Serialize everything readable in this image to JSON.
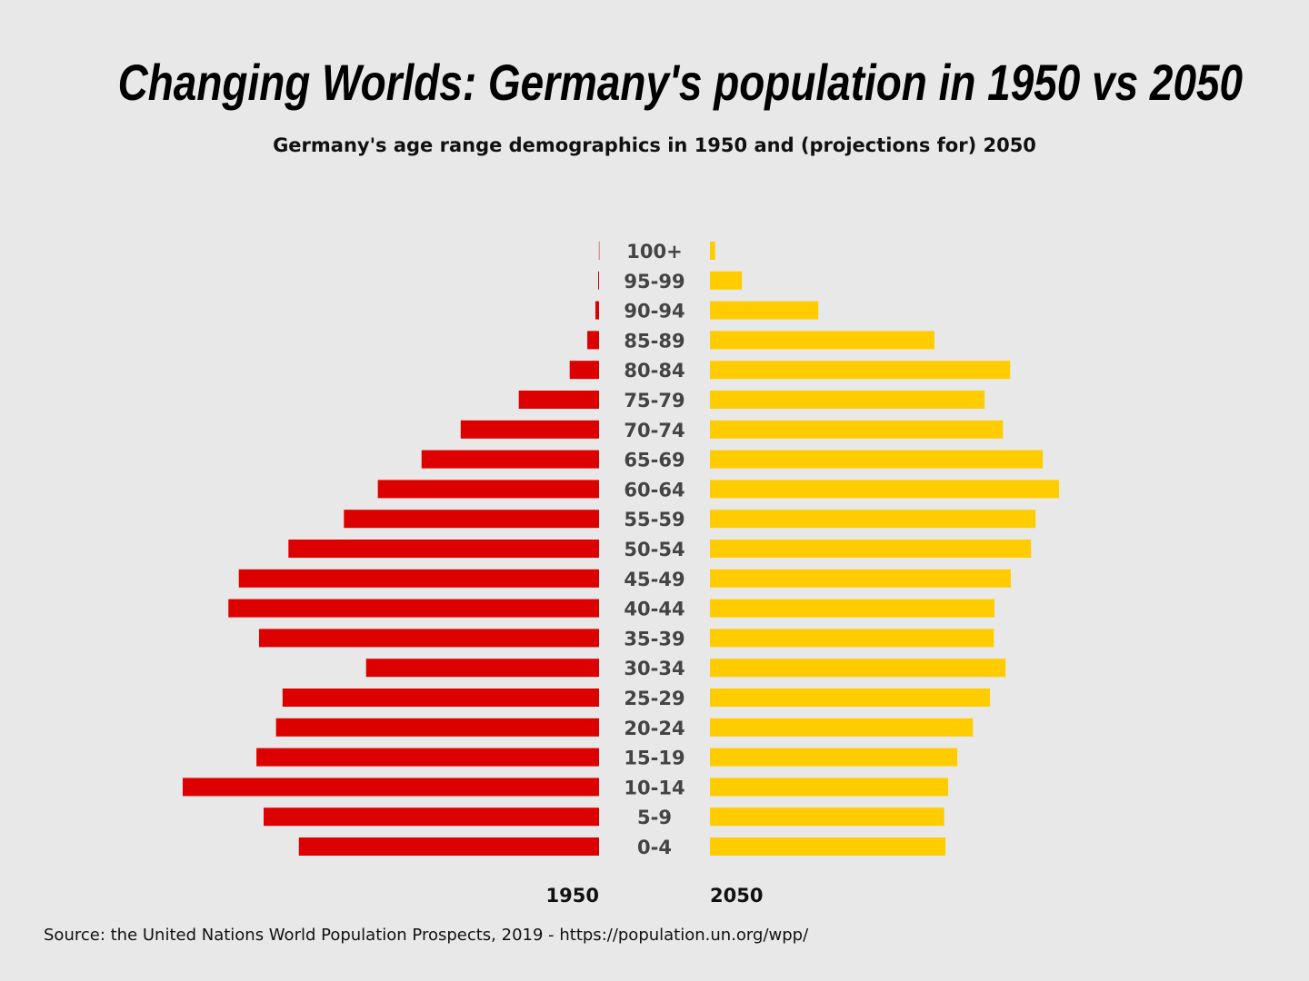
{
  "title": "Changing Worlds: Germany's population in 1950 vs 2050",
  "subtitle": "Germany's age range demographics in 1950 and (projections for) 2050",
  "source": "Source: the United Nations World Population Prospects, 2019 - https://population.un.org/wpp/",
  "chart_data": {
    "type": "bar",
    "orientation": "horizontal-population-pyramid",
    "title": "Changing Worlds: Germany's population in 1950 vs 2050",
    "subtitle": "Germany's age range demographics in 1950 and (projections for) 2050",
    "categories": [
      "100+",
      "95-99",
      "90-94",
      "85-89",
      "80-84",
      "75-79",
      "70-74",
      "65-69",
      "60-64",
      "55-59",
      "50-54",
      "45-49",
      "40-44",
      "35-39",
      "30-34",
      "25-29",
      "20-24",
      "15-19",
      "10-14",
      "5-9",
      "0-4"
    ],
    "series": [
      {
        "name": "1950",
        "color": "#dd0000",
        "side": "left",
        "values": [
          2,
          14,
          56,
          180,
          450,
          1230,
          2120,
          2720,
          3390,
          3910,
          4760,
          5520,
          5680,
          5210,
          3570,
          4850,
          4950,
          5250,
          6380,
          5140,
          4600
        ]
      },
      {
        "name": "2050",
        "color": "#ffcc00",
        "side": "right",
        "values": [
          80,
          490,
          1660,
          3440,
          4600,
          4210,
          4490,
          5100,
          5350,
          4990,
          4920,
          4610,
          4360,
          4350,
          4530,
          4290,
          4030,
          3790,
          3650,
          3590,
          3610
        ]
      }
    ],
    "xlabel": "",
    "ylabel": "",
    "grid": false,
    "axis_ticks_shown": false
  }
}
